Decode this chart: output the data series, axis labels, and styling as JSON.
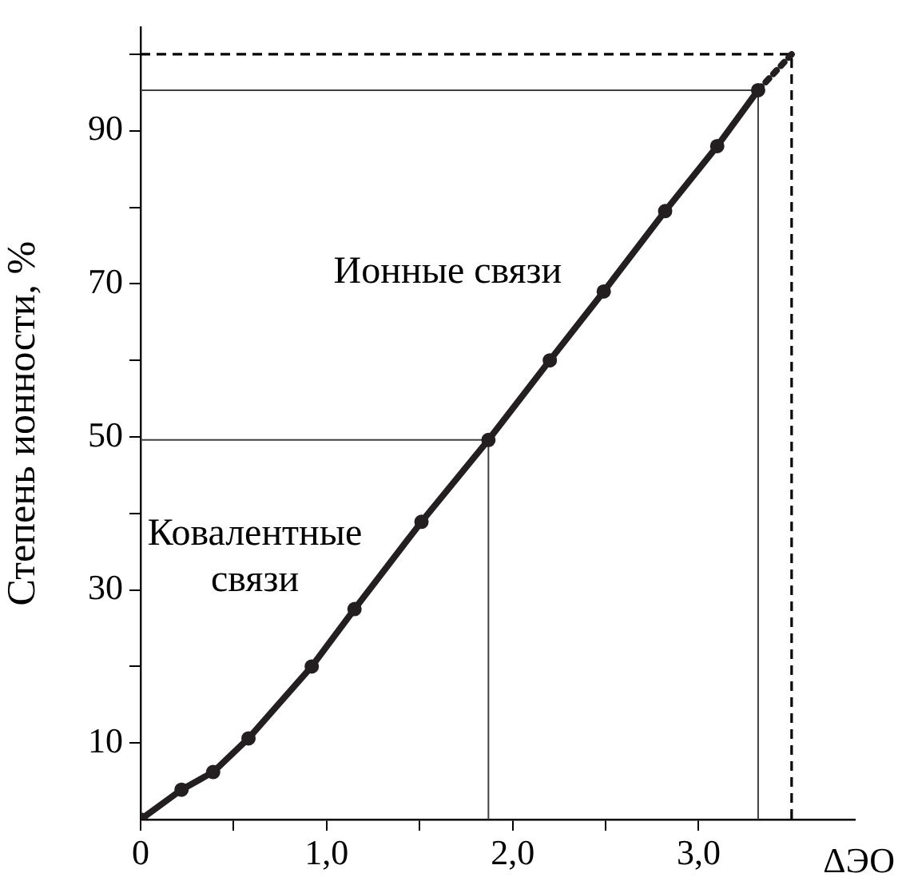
{
  "chart_data": {
    "type": "line",
    "xlabel": "ΔЭО",
    "ylabel": "Степень ионности, %",
    "annotations": [
      "Ионные связи",
      "Ковалентные\nсвязи"
    ],
    "xlim": [
      0,
      3.84
    ],
    "ylim": [
      0,
      103.5
    ],
    "xticks": [
      0,
      {
        "value": 0.5,
        "label": null
      },
      {
        "value": 1,
        "label": "1,0"
      },
      {
        "value": 1.5,
        "label": null
      },
      {
        "value": 2,
        "label": "2,0"
      },
      {
        "value": 2.5,
        "label": null
      },
      {
        "value": 3,
        "label": "3,0"
      }
    ],
    "yticks": [
      10,
      {
        "value": 20,
        "label": null
      },
      30,
      {
        "value": 40,
        "label": null
      },
      50,
      {
        "value": 60,
        "label": null
      },
      70,
      {
        "value": 80,
        "label": null
      },
      90,
      {
        "value": 100,
        "label": null
      }
    ],
    "grid": false,
    "legend": false,
    "series": [
      {
        "color": "#231f20",
        "marker": "circle",
        "line_style": "solid",
        "x": [
          0,
          0.22,
          0.39,
          0.58,
          0.92,
          1.15,
          1.51,
          1.87,
          2.2,
          2.49,
          2.82,
          3.1,
          3.32
        ],
        "values": [
          0,
          3.9,
          6.2,
          10.6,
          20,
          27.5,
          38.9,
          49.6,
          60,
          69,
          79.5,
          88,
          95.3
        ]
      },
      {
        "color": "#231f20",
        "marker": "none",
        "line_style": "dotted",
        "x": [
          3.32,
          3.5
        ],
        "values": [
          95.3,
          100
        ]
      },
      {
        "color": "#000000",
        "marker": "none",
        "line_style": "dashed",
        "x": [
          0,
          3.5,
          3.5
        ],
        "values": [
          100,
          100,
          0
        ]
      },
      {
        "color": "#404040",
        "marker": "none",
        "line_style": "solid",
        "x": [
          0,
          3.32,
          3.32
        ],
        "values": [
          95.3,
          95.3,
          0
        ]
      },
      {
        "color": "#404040",
        "marker": "none",
        "line_style": "solid",
        "x": [
          0,
          1.87,
          1.87
        ],
        "values": [
          49.6,
          49.6,
          0
        ]
      }
    ]
  }
}
